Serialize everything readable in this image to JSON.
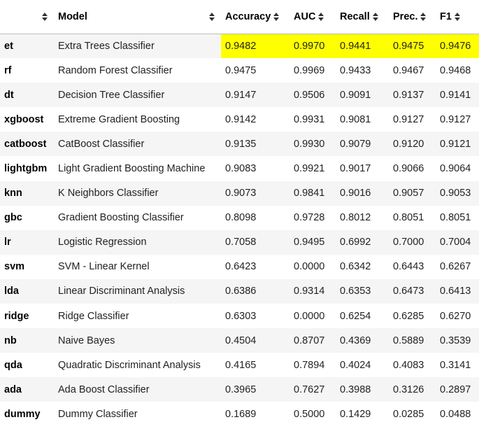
{
  "table": {
    "columns": [
      "",
      "Model",
      "Accuracy",
      "AUC",
      "Recall",
      "Prec.",
      "F1"
    ],
    "highlight_color": "#ffff00",
    "rows": [
      {
        "id": "et",
        "model": "Extra Trees Classifier",
        "accuracy": "0.9482",
        "auc": "0.9970",
        "recall": "0.9441",
        "prec": "0.9475",
        "f1": "0.9476"
      },
      {
        "id": "rf",
        "model": "Random Forest Classifier",
        "accuracy": "0.9475",
        "auc": "0.9969",
        "recall": "0.9433",
        "prec": "0.9467",
        "f1": "0.9468"
      },
      {
        "id": "dt",
        "model": "Decision Tree Classifier",
        "accuracy": "0.9147",
        "auc": "0.9506",
        "recall": "0.9091",
        "prec": "0.9137",
        "f1": "0.9141"
      },
      {
        "id": "xgboost",
        "model": "Extreme Gradient Boosting",
        "accuracy": "0.9142",
        "auc": "0.9931",
        "recall": "0.9081",
        "prec": "0.9127",
        "f1": "0.9127"
      },
      {
        "id": "catboost",
        "model": "CatBoost Classifier",
        "accuracy": "0.9135",
        "auc": "0.9930",
        "recall": "0.9079",
        "prec": "0.9120",
        "f1": "0.9121"
      },
      {
        "id": "lightgbm",
        "model": "Light Gradient Boosting Machine",
        "accuracy": "0.9083",
        "auc": "0.9921",
        "recall": "0.9017",
        "prec": "0.9066",
        "f1": "0.9064"
      },
      {
        "id": "knn",
        "model": "K Neighbors Classifier",
        "accuracy": "0.9073",
        "auc": "0.9841",
        "recall": "0.9016",
        "prec": "0.9057",
        "f1": "0.9053"
      },
      {
        "id": "gbc",
        "model": "Gradient Boosting Classifier",
        "accuracy": "0.8098",
        "auc": "0.9728",
        "recall": "0.8012",
        "prec": "0.8051",
        "f1": "0.8051"
      },
      {
        "id": "lr",
        "model": "Logistic Regression",
        "accuracy": "0.7058",
        "auc": "0.9495",
        "recall": "0.6992",
        "prec": "0.7000",
        "f1": "0.7004"
      },
      {
        "id": "svm",
        "model": "SVM - Linear Kernel",
        "accuracy": "0.6423",
        "auc": "0.0000",
        "recall": "0.6342",
        "prec": "0.6443",
        "f1": "0.6267"
      },
      {
        "id": "lda",
        "model": "Linear Discriminant Analysis",
        "accuracy": "0.6386",
        "auc": "0.9314",
        "recall": "0.6353",
        "prec": "0.6473",
        "f1": "0.6413"
      },
      {
        "id": "ridge",
        "model": "Ridge Classifier",
        "accuracy": "0.6303",
        "auc": "0.0000",
        "recall": "0.6254",
        "prec": "0.6285",
        "f1": "0.6270"
      },
      {
        "id": "nb",
        "model": "Naive Bayes",
        "accuracy": "0.4504",
        "auc": "0.8707",
        "recall": "0.4369",
        "prec": "0.5889",
        "f1": "0.3539"
      },
      {
        "id": "qda",
        "model": "Quadratic Discriminant Analysis",
        "accuracy": "0.4165",
        "auc": "0.7894",
        "recall": "0.4024",
        "prec": "0.4083",
        "f1": "0.3141"
      },
      {
        "id": "ada",
        "model": "Ada Boost Classifier",
        "accuracy": "0.3965",
        "auc": "0.7627",
        "recall": "0.3988",
        "prec": "0.3126",
        "f1": "0.2897"
      },
      {
        "id": "dummy",
        "model": "Dummy Classifier",
        "accuracy": "0.1689",
        "auc": "0.5000",
        "recall": "0.1429",
        "prec": "0.0285",
        "f1": "0.0488"
      }
    ]
  }
}
